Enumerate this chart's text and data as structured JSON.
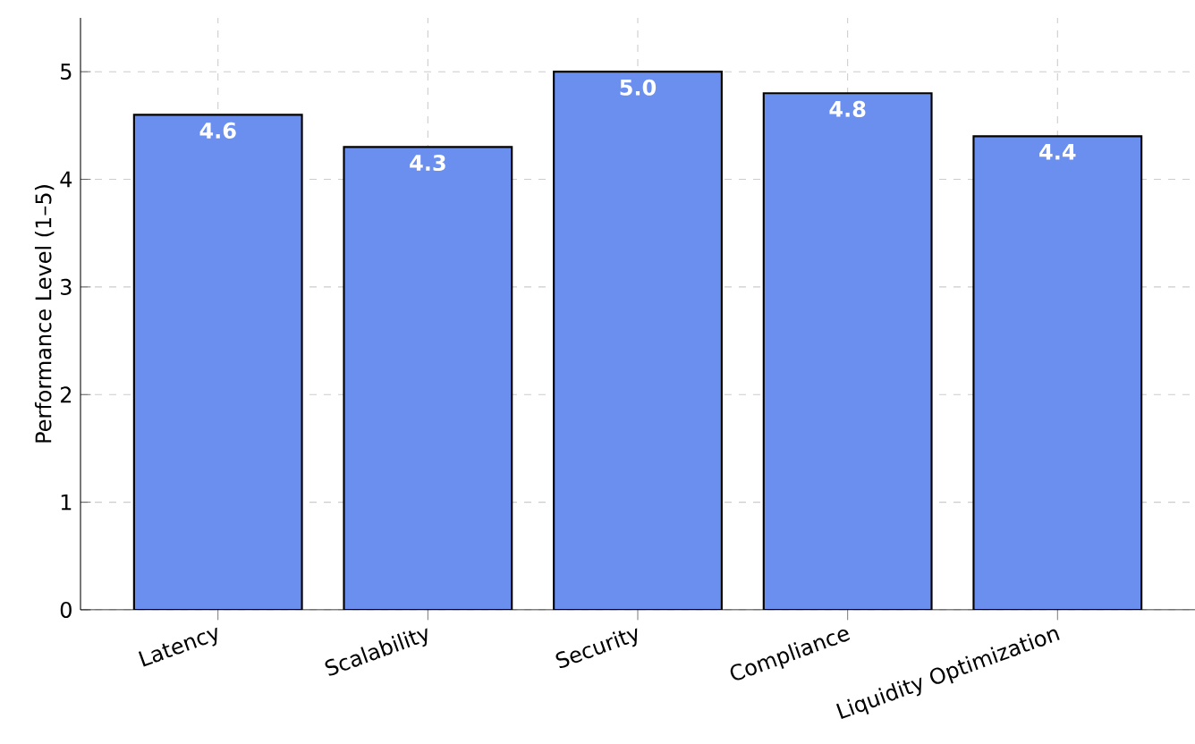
{
  "chart_data": {
    "type": "bar",
    "ylabel": "Performance Level (1–5)",
    "categories": [
      "Latency",
      "Scalability",
      "Security",
      "Compliance",
      "Liquidity Optimization"
    ],
    "values": [
      4.6,
      4.3,
      5.0,
      4.8,
      4.4
    ],
    "value_labels": [
      "4.6",
      "4.3",
      "5.0",
      "4.8",
      "4.4"
    ],
    "color": "#6a8fef",
    "ylim": [
      0,
      5.5
    ],
    "yticks": [
      0,
      1,
      2,
      3,
      4,
      5
    ],
    "grid": true
  }
}
